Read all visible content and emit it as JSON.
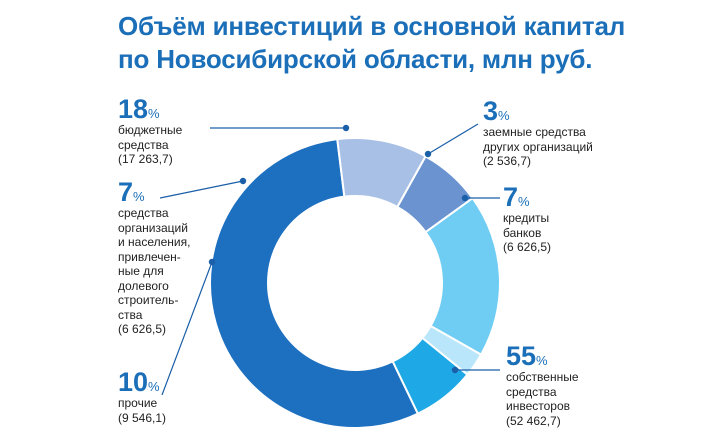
{
  "title": {
    "line1": "Объём инвестиций в основной капитал",
    "line2": "по Новосибирской области, млн руб."
  },
  "chart_data": {
    "type": "pie",
    "donut": true,
    "title": "Объём инвестиций в основной капитал по Новосибирской области, млн руб.",
    "slices": [
      {
        "key": "own",
        "percent": "55",
        "label": "собственные\nсредства\nинвесторов",
        "value_text": "(52 462,7)",
        "value": 52462.7,
        "color": "#1d6fc0"
      },
      {
        "key": "other",
        "percent": "10",
        "label": "прочие",
        "value_text": "(9 546,1)",
        "value": 9546.1,
        "color": "#a9c0e6"
      },
      {
        "key": "equity",
        "percent": "7",
        "label": "средства\nорганизаций\nи населения,\nпривлечен-\nные для\nдолевого\nстроитель-\nства",
        "value_text": "(6 626,5)",
        "value": 6626.5,
        "color": "#6a93d0"
      },
      {
        "key": "budget",
        "percent": "18",
        "label": "бюджетные\nсредства",
        "value_text": "(17 263,7)",
        "value": 17263.7,
        "color": "#6fcdf4"
      },
      {
        "key": "borrowed",
        "percent": "3",
        "label": "заемные средства\nдругих организаций",
        "value_text": "(2 536,7)",
        "value": 2536.7,
        "color": "#b9e6fa"
      },
      {
        "key": "bank",
        "percent": "7",
        "label": "кредиты\nбанков",
        "value_text": "(6 626,5)",
        "value": 6626.5,
        "color": "#1ea8e6"
      }
    ],
    "percent_sign": "%"
  }
}
